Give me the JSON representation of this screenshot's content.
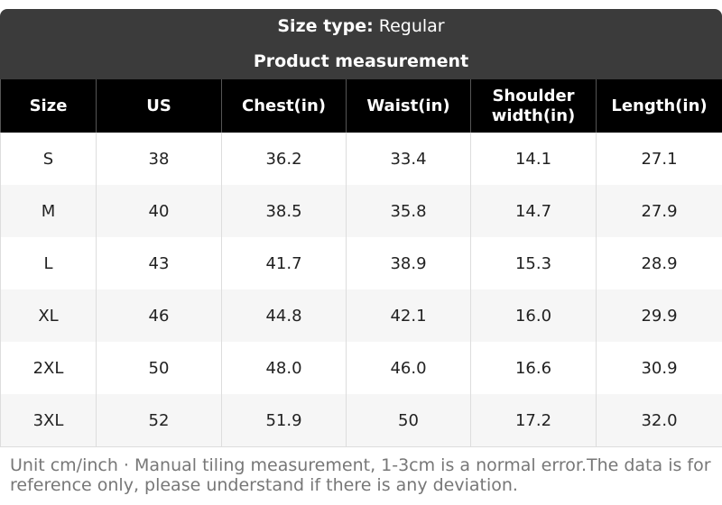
{
  "header": {
    "label": "Size type:",
    "value": "Regular",
    "subtitle": "Product measurement"
  },
  "table": {
    "columns": [
      "Size",
      "US",
      "Chest(in)",
      "Waist(in)",
      "Shoulder width(in)",
      "Length(in)"
    ],
    "rows": [
      [
        "S",
        "38",
        "36.2",
        "33.4",
        "14.1",
        "27.1"
      ],
      [
        "M",
        "40",
        "38.5",
        "35.8",
        "14.7",
        "27.9"
      ],
      [
        "L",
        "43",
        "41.7",
        "38.9",
        "15.3",
        "28.9"
      ],
      [
        "XL",
        "46",
        "44.8",
        "42.1",
        "16.0",
        "29.9"
      ],
      [
        "2XL",
        "50",
        "48.0",
        "46.0",
        "16.6",
        "30.9"
      ],
      [
        "3XL",
        "52",
        "51.9",
        "50",
        "17.2",
        "32.0"
      ]
    ]
  },
  "footnote": "Unit cm/inch · Manual tiling measurement, 1-3cm is a normal error.The data is for reference only, please understand if there is any deviation."
}
